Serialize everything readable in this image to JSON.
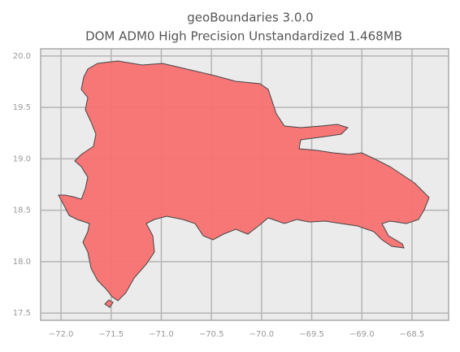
{
  "chart_data": {
    "type": "map",
    "title": "geoBoundaries 3.0.0",
    "subtitle": "DOM ADM0 High Precision Unstandardized 1.468MB",
    "xlim": [
      -72.203,
      -68.135
    ],
    "ylim": [
      17.43,
      20.07
    ],
    "xticks": [
      {
        "value": -72,
        "label": "−72.0"
      },
      {
        "value": -71.5,
        "label": "−71.5"
      },
      {
        "value": -71,
        "label": "−71.0"
      },
      {
        "value": -70.5,
        "label": "−70.5"
      },
      {
        "value": -70,
        "label": "−70.0"
      },
      {
        "value": -69.5,
        "label": "−69.5"
      },
      {
        "value": -69,
        "label": "−69.0"
      },
      {
        "value": -68.5,
        "label": "−68.5"
      }
    ],
    "yticks": [
      17.5,
      {
        "value": 18,
        "label": "18.0"
      },
      18.5,
      {
        "value": 19,
        "label": "19.0"
      },
      19.5,
      {
        "value": 20,
        "label": "20.0"
      }
    ],
    "grid": true,
    "color": "#f87171"
  }
}
